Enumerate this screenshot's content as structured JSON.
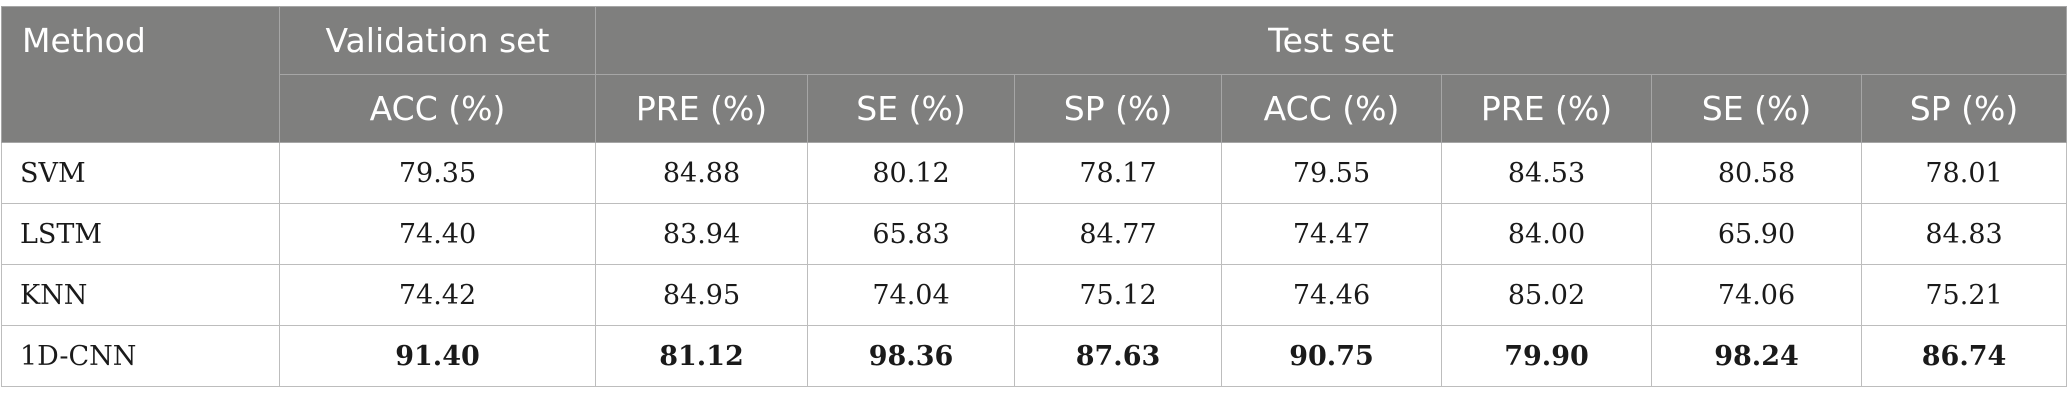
{
  "table": {
    "header": {
      "method": "Method",
      "validation_set": "Validation set",
      "test_set": "Test set",
      "columns": [
        "ACC (%)",
        "PRE (%)",
        "SE (%)",
        "SP (%)",
        "ACC (%)",
        "PRE (%)",
        "SE (%)",
        "SP (%)"
      ]
    },
    "rows": [
      {
        "method": "SVM",
        "values": [
          "79.35",
          "84.88",
          "80.12",
          "78.17",
          "79.55",
          "84.53",
          "80.58",
          "78.01"
        ]
      },
      {
        "method": "LSTM",
        "values": [
          "74.40",
          "83.94",
          "65.83",
          "84.77",
          "74.47",
          "84.00",
          "65.90",
          "84.83"
        ]
      },
      {
        "method": "KNN",
        "values": [
          "74.42",
          "84.95",
          "74.04",
          "75.12",
          "74.46",
          "85.02",
          "74.06",
          "75.21"
        ]
      },
      {
        "method": "1D-CNN",
        "values": [
          "91.40",
          "81.12",
          "98.36",
          "87.63",
          "90.75",
          "79.90",
          "98.24",
          "86.74"
        ]
      }
    ]
  }
}
